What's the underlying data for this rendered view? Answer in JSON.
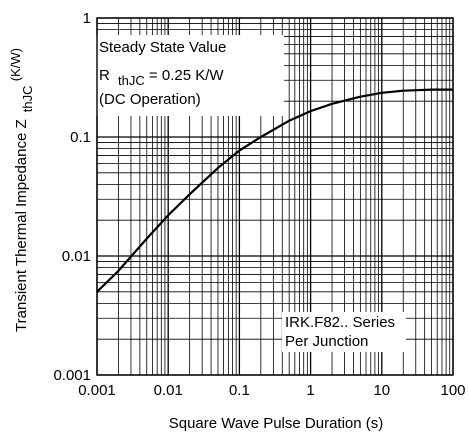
{
  "chart_data": {
    "type": "line",
    "title": "",
    "xlabel": "Square Wave Pulse Duration (s)",
    "ylabel_main": "Transient Thermal Impedance Z",
    "ylabel_sub": "thJC",
    "ylabel_unit": "(K/W)",
    "x_scale": "log",
    "y_scale": "log",
    "xlim": [
      0.001,
      100
    ],
    "ylim": [
      0.001,
      1
    ],
    "grid": true,
    "x_ticks": [
      {
        "value": 0.001,
        "label": "0.001"
      },
      {
        "value": 0.01,
        "label": "0.01"
      },
      {
        "value": 0.1,
        "label": "0.1"
      },
      {
        "value": 1,
        "label": "1"
      },
      {
        "value": 10,
        "label": "10"
      },
      {
        "value": 100,
        "label": "100"
      }
    ],
    "y_ticks": [
      {
        "value": 0.001,
        "label": "0.001"
      },
      {
        "value": 0.01,
        "label": "0.01"
      },
      {
        "value": 0.1,
        "label": "0.1"
      },
      {
        "value": 1,
        "label": "1"
      }
    ],
    "annotations": {
      "steady_state": {
        "line1": "Steady State Value",
        "r_prefix": "R",
        "r_sub": "thJC",
        "r_value": "= 0.25 K/W",
        "line3": "(DC Operation)"
      },
      "series_note": {
        "line1": "IRK.F82.. Series",
        "line2": "Per Junction"
      }
    },
    "series": [
      {
        "color": "#000000",
        "x": [
          0.001,
          0.002,
          0.005,
          0.01,
          0.02,
          0.05,
          0.1,
          0.2,
          0.5,
          1,
          2,
          5,
          10,
          20,
          50,
          100
        ],
        "y": [
          0.005,
          0.0075,
          0.014,
          0.022,
          0.033,
          0.055,
          0.077,
          0.1,
          0.137,
          0.165,
          0.19,
          0.218,
          0.235,
          0.245,
          0.25,
          0.25
        ]
      }
    ]
  }
}
